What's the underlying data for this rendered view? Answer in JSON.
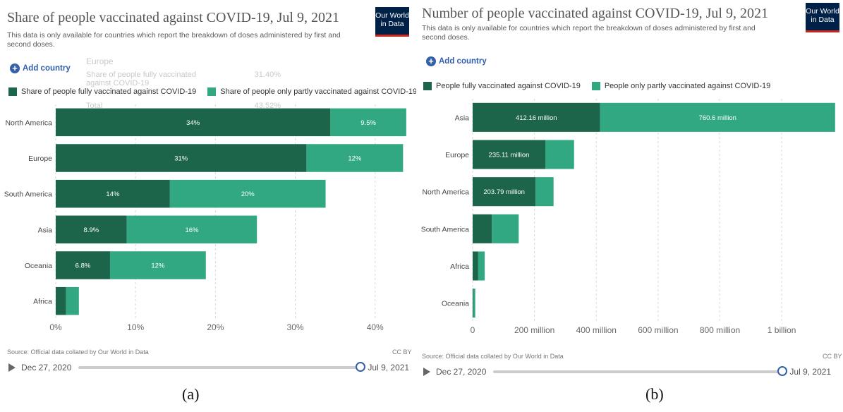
{
  "colors": {
    "fully": "#1d654a",
    "partly": "#31a882",
    "grid": "#d9d9d9",
    "link": "#3360a9"
  },
  "logo": {
    "line1": "Our World",
    "line2": "in Data"
  },
  "add_country": "Add country",
  "panel_a": {
    "title": "Share of people vaccinated against COVID-19, Jul 9, 2021",
    "subtitle": "This data is only available for countries which report the breakdown of doses administered by first and second doses.",
    "legend": [
      "Share of people fully vaccinated against COVID-19",
      "Share of people only partly vaccinated against COVID-19"
    ],
    "source": "Source: Official data collated by Our World in Data",
    "license": "CC BY",
    "timeline_start": "Dec 27, 2020",
    "timeline_end": "Jul 9, 2021",
    "caption": "(a)",
    "tooltip": {
      "title": "Europe",
      "row1_label": "Share of people fully vaccinated against COVID-19",
      "row1_value": "31.40%",
      "total_label": "Total",
      "total_value": "43.52%"
    }
  },
  "panel_b": {
    "title": "Number of people vaccinated against COVID-19, Jul 9, 2021",
    "subtitle": "This data is only available for countries which report the breakdown of doses administered by first and second doses.",
    "legend": [
      "People fully vaccinated against COVID-19",
      "People only partly vaccinated against COVID-19"
    ],
    "source": "Source: Official data collated by Our World in Data",
    "license": "CC BY",
    "timeline_start": "Dec 27, 2020",
    "timeline_end": "Jul 9, 2021",
    "caption": "(b)"
  },
  "chart_data": [
    {
      "type": "bar",
      "orientation": "horizontal",
      "stacked": true,
      "title": "Share of people vaccinated against COVID-19, Jul 9, 2021",
      "categories": [
        "North America",
        "Europe",
        "South America",
        "Asia",
        "Oceania",
        "Africa"
      ],
      "series": [
        {
          "name": "Share of people fully vaccinated against COVID-19",
          "values": [
            34.4,
            31.4,
            14.3,
            8.9,
            6.8,
            1.3
          ],
          "labels": [
            "34%",
            "31%",
            "14%",
            "8.9%",
            "6.8%",
            ""
          ]
        },
        {
          "name": "Share of people only partly vaccinated against COVID-19",
          "values": [
            9.5,
            12.1,
            19.5,
            16.3,
            12.0,
            1.6
          ],
          "labels": [
            "9.5%",
            "12%",
            "20%",
            "16%",
            "12%",
            ""
          ]
        }
      ],
      "xlim": [
        0,
        44
      ],
      "xticks": [
        0,
        10,
        20,
        30,
        40
      ],
      "xtick_labels": [
        "0%",
        "10%",
        "20%",
        "30%",
        "40%"
      ],
      "grid": true,
      "legend_position": "top"
    },
    {
      "type": "bar",
      "orientation": "horizontal",
      "stacked": true,
      "title": "Number of people vaccinated against COVID-19, Jul 9, 2021",
      "categories": [
        "Asia",
        "Europe",
        "North America",
        "South America",
        "Africa",
        "Oceania"
      ],
      "series": [
        {
          "name": "People fully vaccinated against COVID-19",
          "values": [
            412.16,
            235.11,
            203.79,
            62,
            18,
            2.5
          ],
          "labels": [
            "412.16 million",
            "235.11 million",
            "203.79 million",
            "",
            "",
            ""
          ]
        },
        {
          "name": "People only partly vaccinated against COVID-19",
          "values": [
            760.6,
            93,
            58,
            87,
            21,
            6
          ],
          "labels": [
            "760.6 million",
            "",
            "",
            "",
            "",
            ""
          ]
        }
      ],
      "value_unit": "million",
      "xlim": [
        0,
        1180
      ],
      "xticks": [
        0,
        200,
        400,
        600,
        800,
        1000
      ],
      "xtick_labels": [
        "0",
        "200 million",
        "400 million",
        "600 million",
        "800 million",
        "1 billion"
      ],
      "grid": true,
      "legend_position": "top"
    }
  ]
}
